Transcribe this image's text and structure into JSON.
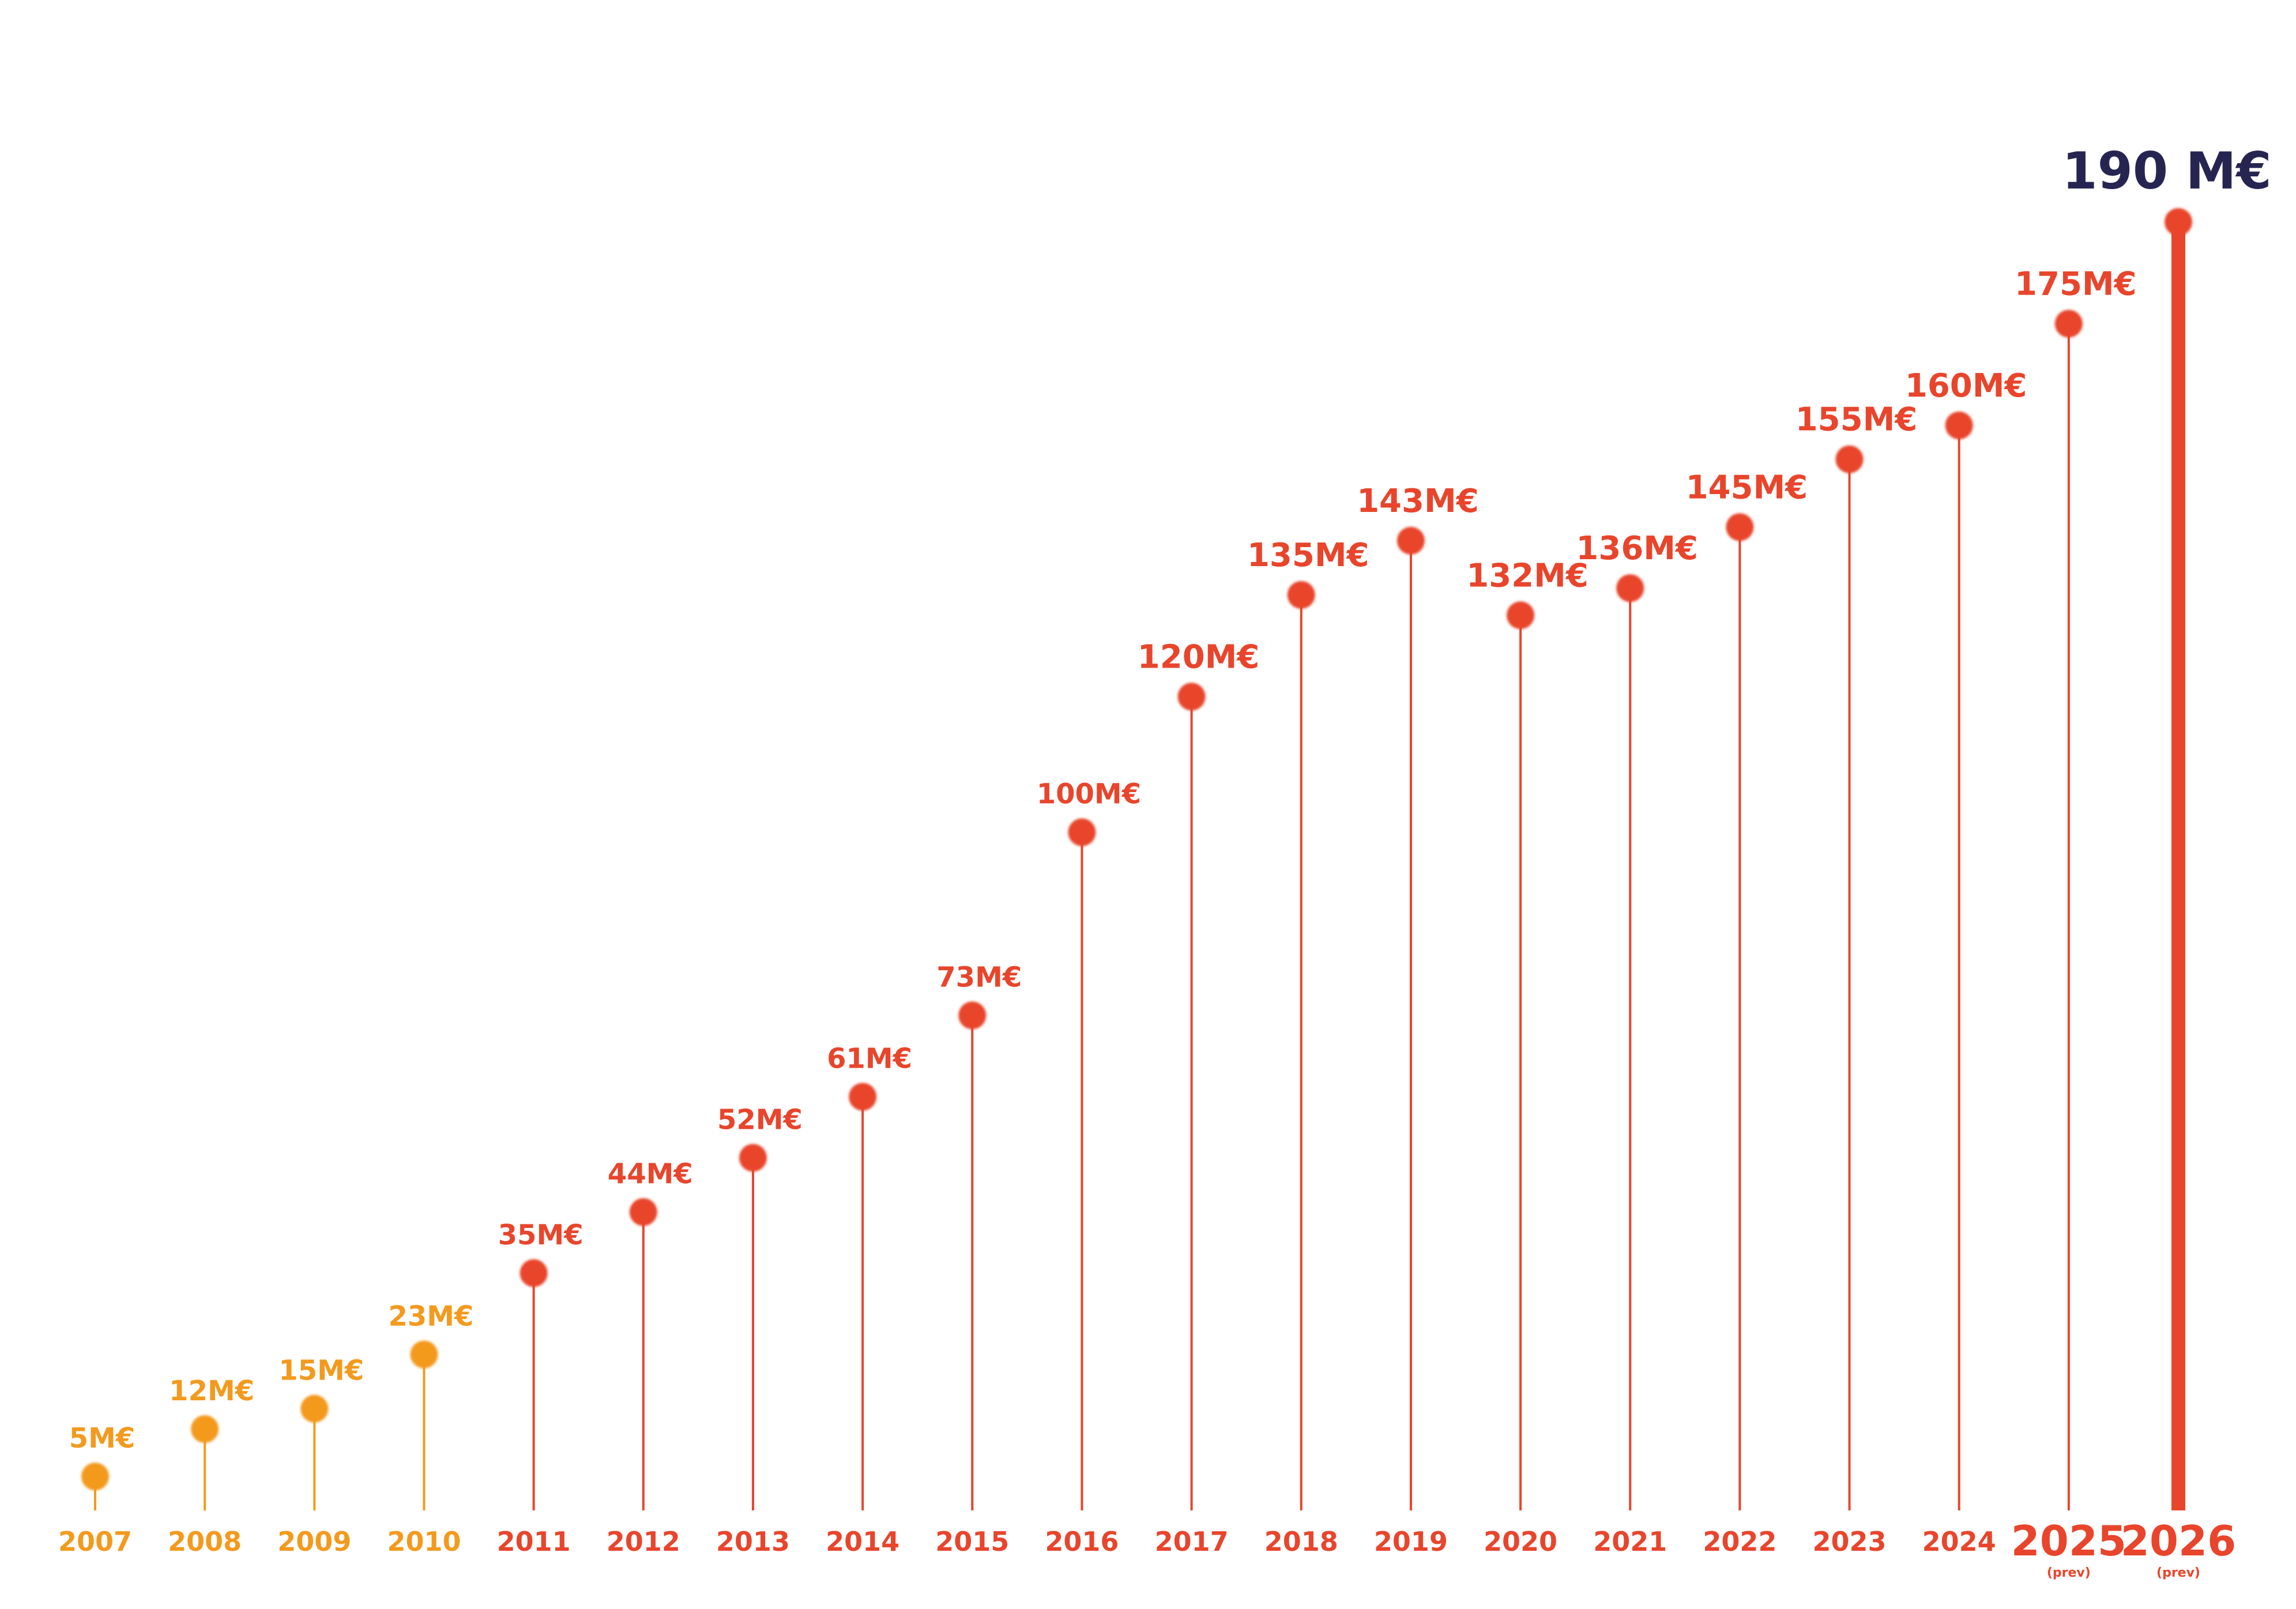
{
  "chart_data": {
    "type": "line",
    "title": "",
    "xlabel": "",
    "ylabel": "",
    "ylim": [
      0,
      190
    ],
    "grid": false,
    "legend": "none",
    "colors": {
      "early": "#F39A1E",
      "main": "#E8452C",
      "highlight": "#262552"
    },
    "points": [
      {
        "year": "2007",
        "value": 5,
        "label": "5M€",
        "tone": "early"
      },
      {
        "year": "2008",
        "value": 12,
        "label": "12M€",
        "tone": "early"
      },
      {
        "year": "2009",
        "value": 15,
        "label": "15M€",
        "tone": "early"
      },
      {
        "year": "2010",
        "value": 23,
        "label": "23M€",
        "tone": "early"
      },
      {
        "year": "2011",
        "value": 35,
        "label": "35M€",
        "tone": "main"
      },
      {
        "year": "2012",
        "value": 44,
        "label": "44M€",
        "tone": "main"
      },
      {
        "year": "2013",
        "value": 52,
        "label": "52M€",
        "tone": "main"
      },
      {
        "year": "2014",
        "value": 61,
        "label": "61M€",
        "tone": "main"
      },
      {
        "year": "2015",
        "value": 73,
        "label": "73M€",
        "tone": "main"
      },
      {
        "year": "2016",
        "value": 100,
        "label": "100M€",
        "tone": "main"
      },
      {
        "year": "2017",
        "value": 120,
        "label": "120M€",
        "tone": "main"
      },
      {
        "year": "2018",
        "value": 135,
        "label": "135M€",
        "tone": "main"
      },
      {
        "year": "2019",
        "value": 143,
        "label": "143M€",
        "tone": "main"
      },
      {
        "year": "2020",
        "value": 132,
        "label": "132M€",
        "tone": "main"
      },
      {
        "year": "2021",
        "value": 136,
        "label": "136M€",
        "tone": "main"
      },
      {
        "year": "2022",
        "value": 145,
        "label": "145M€",
        "tone": "main"
      },
      {
        "year": "2023",
        "value": 155,
        "label": "155M€",
        "tone": "main"
      },
      {
        "year": "2024",
        "value": 160,
        "label": "160M€",
        "tone": "main"
      },
      {
        "year": "2025",
        "value": 175,
        "label": "175M€",
        "tone": "main",
        "note": "(prev)"
      },
      {
        "year": "2026",
        "value": 190,
        "label": "190 M€",
        "tone": "highlight",
        "note": "(prev)"
      }
    ]
  }
}
